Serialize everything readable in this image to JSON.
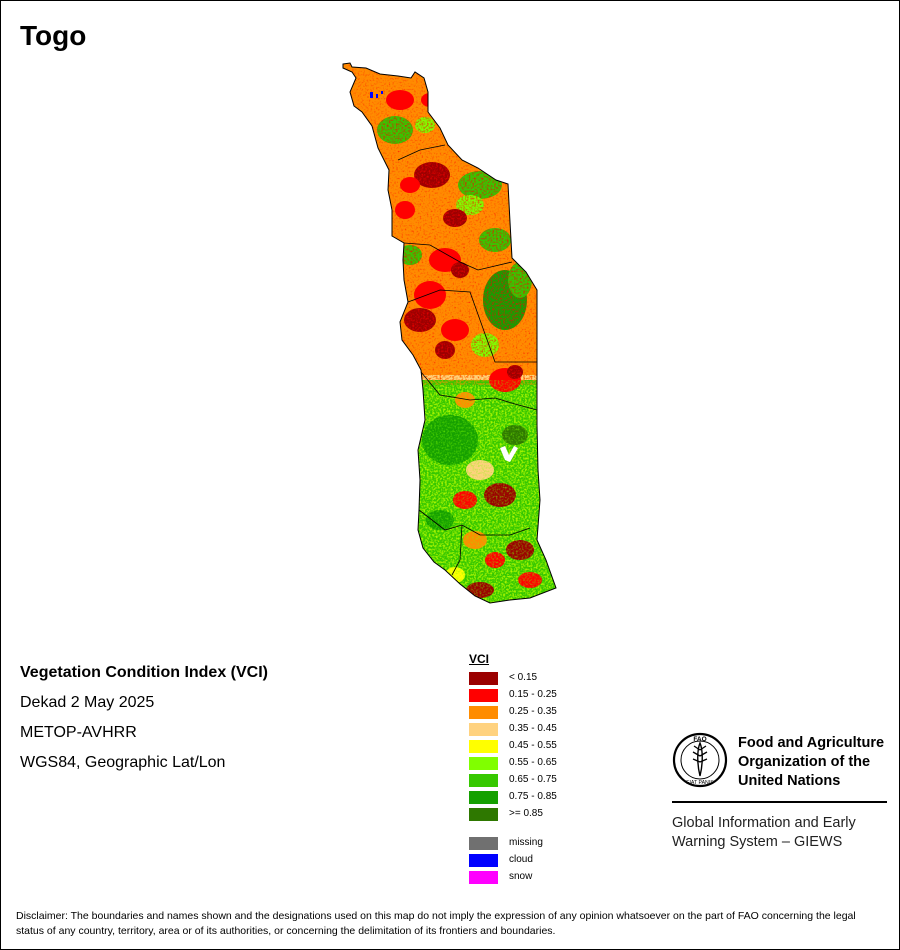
{
  "page": {
    "title": "Togo"
  },
  "info": {
    "index_title": "Vegetation Condition Index (VCI)",
    "period": "Dekad 2 May 2025",
    "sensor": "METOP-AVHRR",
    "projection": "WGS84, Geographic Lat/Lon"
  },
  "legend": {
    "title": "VCI",
    "classes": [
      {
        "label": "< 0.15",
        "color": "#9b0000"
      },
      {
        "label": "0.15 - 0.25",
        "color": "#ff0000"
      },
      {
        "label": "0.25 - 0.35",
        "color": "#ff8c00"
      },
      {
        "label": "0.35 - 0.45",
        "color": "#ffd27f"
      },
      {
        "label": "0.45 - 0.55",
        "color": "#ffff00"
      },
      {
        "label": "0.55 - 0.65",
        "color": "#80ff00"
      },
      {
        "label": "0.65 - 0.75",
        "color": "#36c800"
      },
      {
        "label": "0.75 - 0.85",
        "color": "#15a000"
      },
      {
        "label": ">= 0.85",
        "color": "#2e7800"
      }
    ],
    "special": [
      {
        "label": "missing",
        "color": "#707070"
      },
      {
        "label": "cloud",
        "color": "#0000ff"
      },
      {
        "label": "snow",
        "color": "#ff00ff"
      }
    ]
  },
  "fao": {
    "logo_text": "FAO",
    "logo_motto": "FIAT PANIS",
    "org_line1": "Food and Agriculture",
    "org_line2": "Organization of the",
    "org_line3": "United Nations",
    "giews": "Global Information and Early Warning System – GIEWS"
  },
  "disclaimer": "Disclaimer: The boundaries and names shown and the designations used on this map do not imply the expression of any opinion whatsoever on the part of FAO concerning the legal status of any country, territory, area or of its authorities, or concerning the delimitation of its frontiers and boundaries."
}
